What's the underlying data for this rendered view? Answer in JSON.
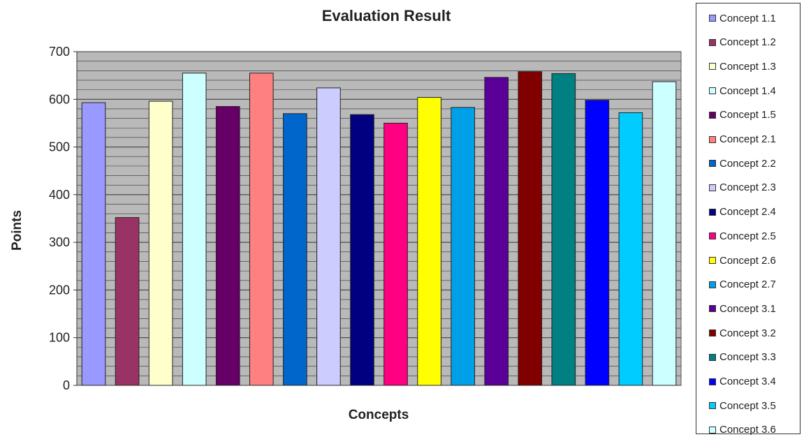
{
  "chart_data": {
    "type": "bar",
    "title": "Evaluation Result",
    "xlabel": "Concepts",
    "ylabel": "Points",
    "ylim": [
      0,
      700
    ],
    "yticks": [
      "0",
      "100",
      "200",
      "300",
      "400",
      "500",
      "600",
      "700"
    ],
    "grid": true,
    "legend_position": "right",
    "plot_background": "#b9b9b9",
    "categories": [
      "Concept 1.1",
      "Concept 1.2",
      "Concept 1.3",
      "Concept 1.4",
      "Concept 1.5",
      "Concept 2.1",
      "Concept 2.2",
      "Concept 2.3",
      "Concept 2.4",
      "Concept 2.5",
      "Concept 2.6",
      "Concept 2.7",
      "Concept 3.1",
      "Concept 3.2",
      "Concept 3.3",
      "Concept 3.4",
      "Concept 3.5",
      "Concept 3.6"
    ],
    "values": [
      593,
      352,
      596,
      655,
      585,
      655,
      570,
      624,
      568,
      550,
      604,
      583,
      646,
      658,
      654,
      598,
      572,
      637
    ],
    "colors": [
      "#9999ff",
      "#993366",
      "#ffffcc",
      "#ccffff",
      "#660066",
      "#ff8080",
      "#0066cc",
      "#ccccff",
      "#000080",
      "#ff0080",
      "#ffff00",
      "#00a0e8",
      "#5a0099",
      "#800000",
      "#008080",
      "#0000ff",
      "#00ccff",
      "#ccffff"
    ]
  }
}
